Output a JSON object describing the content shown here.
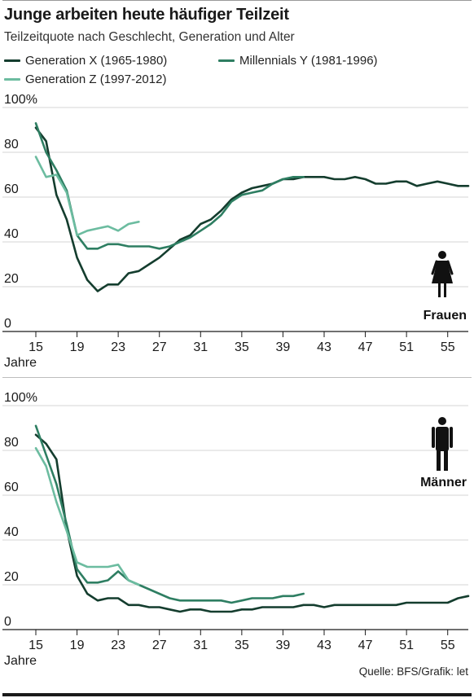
{
  "header": {
    "title": "Junge arbeiten heute häufiger Teilzeit",
    "subtitle": "Teilzeitquote nach Geschlecht, Generation und Alter"
  },
  "legend": [
    {
      "name": "Generation X (1965-1980)",
      "color": "#143d2e"
    },
    {
      "name": "Millennials Y (1981-1996)",
      "color": "#2e7e62"
    },
    {
      "name": "Generation Z (1997-2012)",
      "color": "#6cbca0"
    }
  ],
  "source": "Quelle: BFS/Grafik: let",
  "colors": {
    "gen_x": "#143d2e",
    "millennials": "#2e7e62",
    "gen_z": "#6cbca0",
    "text": "#1a1a1a"
  },
  "chart_data": [
    {
      "type": "line",
      "panel_label": "Frauen",
      "icon": "woman-icon",
      "xlabel": "Jahre",
      "ylabel": "",
      "xlim": [
        15,
        57
      ],
      "ylim": [
        0,
        100
      ],
      "x_ticks": [
        15,
        19,
        23,
        27,
        31,
        35,
        39,
        43,
        47,
        51,
        55
      ],
      "y_ticks": [
        0,
        20,
        40,
        60,
        80,
        100
      ],
      "y_tick_labels": [
        "0",
        "20",
        "40",
        "60",
        "80",
        "100%"
      ],
      "grid": true,
      "series": [
        {
          "name": "Generation X (1965-1980)",
          "x": [
            15,
            16,
            17,
            18,
            19,
            20,
            21,
            22,
            23,
            24,
            25,
            26,
            27,
            28,
            29,
            30,
            31,
            32,
            33,
            34,
            35,
            36,
            37,
            38,
            39,
            40,
            41,
            42,
            43,
            44,
            45,
            46,
            47,
            48,
            49,
            50,
            51,
            52,
            53,
            54,
            55,
            56,
            57
          ],
          "y": [
            91,
            85,
            61,
            50,
            33,
            23,
            18,
            21,
            21,
            26,
            27,
            30,
            33,
            37,
            41,
            43,
            48,
            50,
            54,
            59,
            62,
            64,
            65,
            66,
            68,
            68,
            69,
            69,
            69,
            68,
            68,
            69,
            68,
            66,
            66,
            67,
            67,
            65,
            66,
            67,
            66,
            65,
            65
          ]
        },
        {
          "name": "Millennials Y (1981-1996)",
          "x": [
            15,
            16,
            17,
            18,
            19,
            20,
            21,
            22,
            23,
            24,
            25,
            26,
            27,
            28,
            29,
            30,
            31,
            32,
            33,
            34,
            35,
            36,
            37,
            38,
            39,
            40,
            41
          ],
          "y": [
            93,
            80,
            72,
            63,
            43,
            37,
            37,
            39,
            39,
            38,
            38,
            38,
            37,
            38,
            40,
            42,
            45,
            48,
            52,
            58,
            61,
            62,
            63,
            66,
            68,
            69,
            69
          ]
        },
        {
          "name": "Generation Z (1997-2012)",
          "x": [
            15,
            16,
            17,
            18,
            19,
            20,
            21,
            22,
            23,
            24,
            25
          ],
          "y": [
            78,
            69,
            70,
            62,
            43,
            45,
            46,
            47,
            45,
            48,
            49
          ]
        }
      ]
    },
    {
      "type": "line",
      "panel_label": "Männer",
      "icon": "man-icon",
      "xlabel": "Jahre",
      "ylabel": "",
      "xlim": [
        15,
        57
      ],
      "ylim": [
        0,
        100
      ],
      "x_ticks": [
        15,
        19,
        23,
        27,
        31,
        35,
        39,
        43,
        47,
        51,
        55
      ],
      "y_ticks": [
        0,
        20,
        40,
        60,
        80,
        100
      ],
      "y_tick_labels": [
        "0",
        "20",
        "40",
        "60",
        "80",
        "100%"
      ],
      "grid": true,
      "series": [
        {
          "name": "Generation X (1965-1980)",
          "x": [
            15,
            16,
            17,
            18,
            19,
            20,
            21,
            22,
            23,
            24,
            25,
            26,
            27,
            28,
            29,
            30,
            31,
            32,
            33,
            34,
            35,
            36,
            37,
            38,
            39,
            40,
            41,
            42,
            43,
            44,
            45,
            46,
            47,
            48,
            49,
            50,
            51,
            52,
            53,
            54,
            55,
            56,
            57
          ],
          "y": [
            87,
            83,
            76,
            45,
            24,
            16,
            13,
            14,
            14,
            11,
            11,
            10,
            10,
            9,
            8,
            9,
            9,
            8,
            8,
            8,
            9,
            9,
            10,
            10,
            10,
            10,
            11,
            11,
            10,
            11,
            11,
            11,
            11,
            11,
            11,
            11,
            12,
            12,
            12,
            12,
            12,
            14,
            15
          ]
        },
        {
          "name": "Millennials Y (1981-1996)",
          "x": [
            15,
            16,
            17,
            18,
            19,
            20,
            21,
            22,
            23,
            24,
            25,
            26,
            27,
            28,
            29,
            30,
            31,
            32,
            33,
            34,
            35,
            36,
            37,
            38,
            39,
            40,
            41
          ],
          "y": [
            91,
            78,
            65,
            47,
            27,
            21,
            21,
            22,
            26,
            22,
            20,
            18,
            16,
            14,
            13,
            13,
            13,
            13,
            13,
            12,
            13,
            14,
            14,
            14,
            15,
            15,
            16
          ]
        },
        {
          "name": "Generation Z (1997-2012)",
          "x": [
            15,
            16,
            17,
            18,
            19,
            20,
            21,
            22,
            23,
            24,
            25
          ],
          "y": [
            81,
            73,
            57,
            44,
            30,
            28,
            28,
            28,
            29,
            22,
            20
          ]
        }
      ]
    }
  ]
}
